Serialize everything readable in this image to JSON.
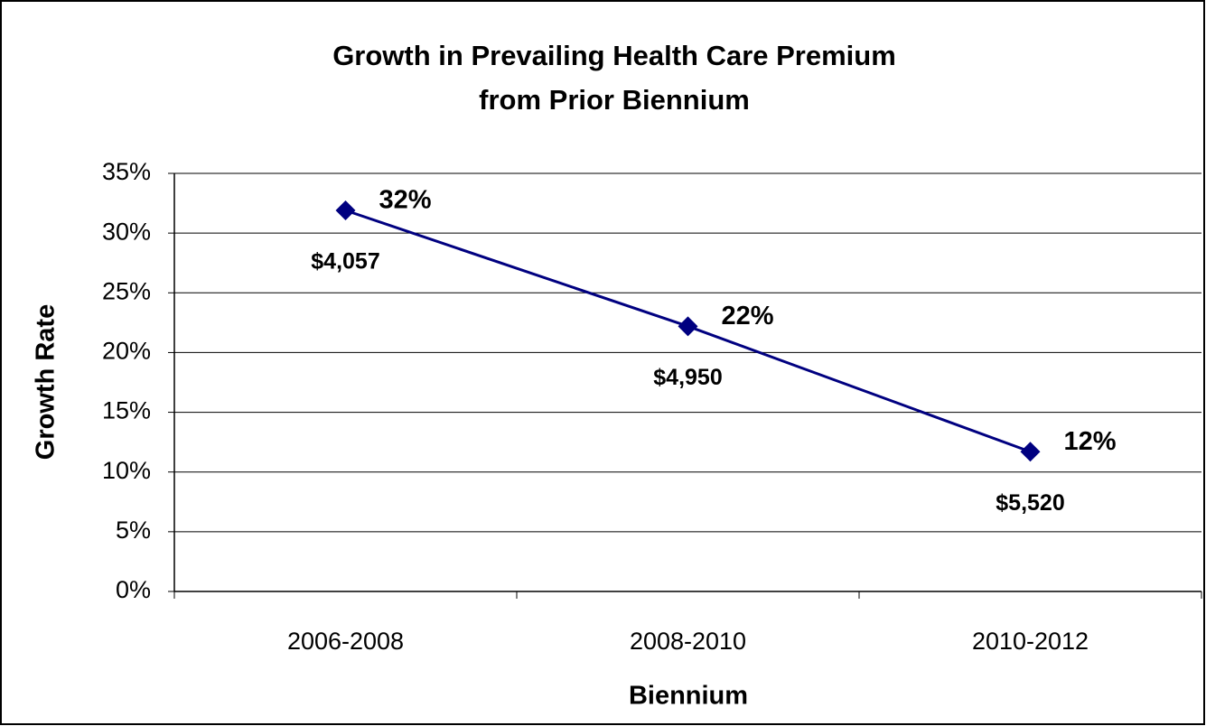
{
  "chart_data": {
    "type": "line",
    "title": [
      "Growth in Prevailing Health Care Premium",
      "from Prior Biennium"
    ],
    "x_label": "Biennium",
    "y_label": "Growth Rate",
    "categories": [
      "2006-2008",
      "2008-2010",
      "2010-2012"
    ],
    "series": [
      {
        "name": "Growth Rate",
        "color": "#000080",
        "values": [
          31.9,
          22.2,
          11.7
        ],
        "value_labels": [
          "32%",
          "22%",
          "12%"
        ]
      }
    ],
    "annotations": [
      "$4,057",
      "$4,950",
      "$5,520"
    ],
    "ylim": [
      0,
      35
    ],
    "yticks": [
      {
        "value": 0,
        "label": "0%"
      },
      {
        "value": 5,
        "label": "5%"
      },
      {
        "value": 10,
        "label": "10%"
      },
      {
        "value": 15,
        "label": "15%"
      },
      {
        "value": 20,
        "label": "20%"
      },
      {
        "value": 25,
        "label": "25%"
      },
      {
        "value": 30,
        "label": "30%"
      },
      {
        "value": 35,
        "label": "35%"
      }
    ],
    "grid": true
  }
}
